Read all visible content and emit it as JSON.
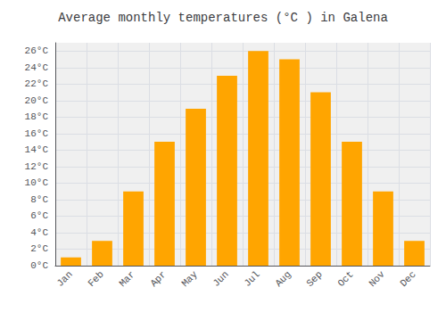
{
  "chart_data": {
    "type": "bar",
    "title": "Average monthly temperatures (°C ) in Galena",
    "categories": [
      "Jan",
      "Feb",
      "Mar",
      "Apr",
      "May",
      "Jun",
      "Jul",
      "Aug",
      "Sep",
      "Oct",
      "Nov",
      "Dec"
    ],
    "values": [
      1,
      3,
      9,
      15,
      19,
      23,
      26,
      25,
      21,
      15,
      9,
      3
    ],
    "color": "#FFA500",
    "ylim": [
      0,
      27
    ],
    "yticks": [
      {
        "value": 0,
        "label": "0°C"
      },
      {
        "value": 2,
        "label": "2°C"
      },
      {
        "value": 4,
        "label": "4°C"
      },
      {
        "value": 6,
        "label": "6°C"
      },
      {
        "value": 8,
        "label": "8°C"
      },
      {
        "value": 10,
        "label": "10°C"
      },
      {
        "value": 12,
        "label": "12°C"
      },
      {
        "value": 14,
        "label": "14°C"
      },
      {
        "value": 16,
        "label": "16°C"
      },
      {
        "value": 18,
        "label": "18°C"
      },
      {
        "value": 20,
        "label": "20°C"
      },
      {
        "value": 22,
        "label": "22°C"
      },
      {
        "value": 24,
        "label": "24°C"
      },
      {
        "value": 26,
        "label": "26°C"
      }
    ],
    "grid": true
  }
}
